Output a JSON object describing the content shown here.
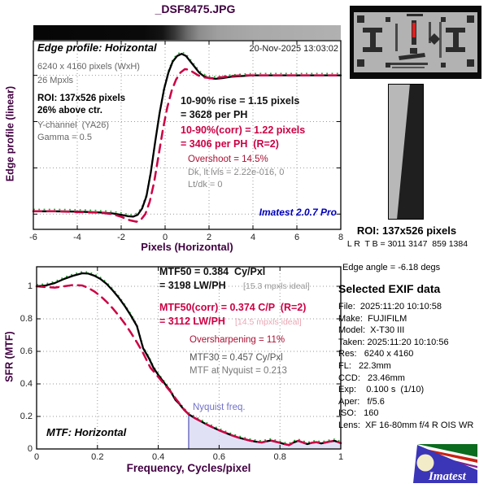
{
  "window": {
    "title": "_DSF8475.JPG"
  },
  "colors": {
    "axis_purple": "#400040",
    "crimson": "#cc0044",
    "dark_crimson": "#aa1133",
    "watermark_blue": "#0000bb",
    "nyquist_blue": "#7070c8",
    "nyquist_fill": "#dcdcf4",
    "ghost_green": "#22a833",
    "gray_text": "#777777",
    "pink_ideal": "#eba6b4"
  },
  "top_panel": {
    "header_label": "Edge profile: Horizontal",
    "timestamp": "20-Nov-2025 13:03:02",
    "info_lines": [
      "6240 x 4160 pixels (WxH)",
      "26 Mpxls"
    ],
    "roi_lines": [
      "ROI: 137x526 pixels",
      "26% above ctr."
    ],
    "channel_lines": [
      "Y-channel  (YA26)",
      "Gamma = 0.5"
    ],
    "rise_black_1": "10-90% rise = 1.15 pixels",
    "rise_black_2": "= 3628 per PH",
    "rise_corr_1": "10-90%(corr) = 1.22 pixels",
    "rise_corr_2": "= 3406 per PH  (R=2)",
    "overshoot": "Overshoot = 14.5%",
    "dk_lt": "Dk, lt lvls = 2.22e-016, 0",
    "lt_dk": "Lt/dk = 0",
    "watermark": "Imatest 2.0.7 Pro",
    "xlabel": "Pixels (Horizontal)",
    "ylabel": "Edge profile (linear)"
  },
  "bottom_panel": {
    "mtf50_1": "MTF50 = 0.384  Cy/Pxl",
    "mtf50_2": "= 3198 LW/PH",
    "mtf50_ideal": "[15.3 mpxls ideal]",
    "mtf50corr_1": "MTF50(corr) = 0.374 C/P  (R=2)",
    "mtf50corr_2": "= 3112 LW/PH",
    "mtf50corr_ideal": "[14.5 mpxls ideal]",
    "oversharpening": "Oversharpening = 11%",
    "mtf30": "MTF30 = 0.457 Cy/Pxl",
    "mtf_nyquist": "MTF at Nyquist = 0.213",
    "nyquist_label": "Nyquist freq.",
    "plot_label": "MTF: Horizontal",
    "xlabel": "Frequency, Cycles/pixel",
    "ylabel": "SFR (MTF)"
  },
  "side_panel": {
    "roi_title": "ROI: 137x526 pixels",
    "roi_coords": "L R  T B = 3011 3147  859 1384",
    "edge_angle": "Edge angle = -6.18 degs",
    "exif_title": "Selected EXIF data",
    "exif_lines": [
      "File:  2025:11:20 10:10:58",
      "Make:  FUJIFILM",
      "Model:  X-T30 III",
      "Taken: 2025:11:20 10:10:56",
      "Res:   6240 x 4160",
      "FL:   22.3mm",
      "CCD:   23.46mm",
      "Exp:    0.100 s  (1/10)",
      "Aper:   f/5.6",
      "ISO:   160",
      "Lens:  XF 16-80mm f/4 R OIS WR"
    ],
    "logo_text": "Imatest"
  },
  "chart_data": [
    {
      "type": "line",
      "title": "Edge profile: Horizontal",
      "xlabel": "Pixels (Horizontal)",
      "ylabel": "Edge profile (linear)",
      "xlim": [
        -6,
        8
      ],
      "ylim": [
        -0.11,
        1.25
      ],
      "xticks": [
        -6,
        -4,
        -2,
        0,
        2,
        4,
        6,
        8
      ],
      "ygrid": [
        0,
        0.333,
        0.667,
        1.0
      ],
      "grid": "dotted",
      "legend_position": "none",
      "series": [
        {
          "name": "edge profile (uncorrected)",
          "color": "#000000",
          "style": "solid",
          "points": [
            [
              -6,
              0.02
            ],
            [
              -5,
              0.02
            ],
            [
              -4,
              0.018
            ],
            [
              -3,
              0.012
            ],
            [
              -2.4,
              0.005
            ],
            [
              -2,
              -0.005
            ],
            [
              -1.7,
              -0.015
            ],
            [
              -1.45,
              -0.018
            ],
            [
              -1.25,
              -0.005
            ],
            [
              -1.05,
              0.04
            ],
            [
              -0.85,
              0.13
            ],
            [
              -0.65,
              0.3
            ],
            [
              -0.45,
              0.52
            ],
            [
              -0.25,
              0.73
            ],
            [
              -0.05,
              0.9
            ],
            [
              0.15,
              1.02
            ],
            [
              0.35,
              1.1
            ],
            [
              0.55,
              1.14
            ],
            [
              0.75,
              1.155
            ],
            [
              0.95,
              1.14
            ],
            [
              1.15,
              1.1
            ],
            [
              1.35,
              1.06
            ],
            [
              1.55,
              1.02
            ],
            [
              1.75,
              0.995
            ],
            [
              2,
              0.98
            ],
            [
              2.3,
              0.975
            ],
            [
              2.6,
              0.98
            ],
            [
              3,
              0.99
            ],
            [
              3.5,
              0.995
            ],
            [
              4,
              1
            ],
            [
              5,
              1
            ],
            [
              6,
              1
            ],
            [
              7,
              1
            ],
            [
              8,
              1
            ]
          ]
        },
        {
          "name": "edge profile (corrected, R=2)",
          "color": "#cc0044",
          "style": "dashed",
          "points": [
            [
              -6,
              0.02
            ],
            [
              -5,
              0.02
            ],
            [
              -4,
              0.015
            ],
            [
              -3,
              0.01
            ],
            [
              -2.4,
              0
            ],
            [
              -2,
              -0.02
            ],
            [
              -1.6,
              -0.045
            ],
            [
              -1.3,
              -0.055
            ],
            [
              -1.1,
              -0.04
            ],
            [
              -0.9,
              0
            ],
            [
              -0.7,
              0.09
            ],
            [
              -0.5,
              0.23
            ],
            [
              -0.3,
              0.42
            ],
            [
              -0.1,
              0.61
            ],
            [
              0.1,
              0.77
            ],
            [
              0.3,
              0.89
            ],
            [
              0.5,
              0.97
            ],
            [
              0.7,
              1.02
            ],
            [
              0.9,
              1.045
            ],
            [
              1.1,
              1.04
            ],
            [
              1.3,
              1.02
            ],
            [
              1.5,
              1
            ],
            [
              1.8,
              0.985
            ],
            [
              2.1,
              0.98
            ],
            [
              2.5,
              0.985
            ],
            [
              3,
              0.995
            ],
            [
              3.5,
              1
            ],
            [
              4,
              1
            ],
            [
              5,
              1
            ],
            [
              6,
              1
            ],
            [
              7,
              1
            ],
            [
              8,
              1
            ]
          ]
        }
      ],
      "key_values": {
        "rise_10_90_pixels": 1.15,
        "rise_per_PH": 3628,
        "rise_corr_pixels": 1.22,
        "rise_corr_per_PH": 3406,
        "overshoot_pct": 14.5
      }
    },
    {
      "type": "line",
      "title": "MTF: Horizontal",
      "xlabel": "Frequency, Cycles/pixel",
      "ylabel": "SFR (MTF)",
      "xlim": [
        0,
        1
      ],
      "ylim": [
        0,
        1.12
      ],
      "xticks": [
        0,
        0.2,
        0.4,
        0.6,
        0.8,
        1
      ],
      "yticks": [
        0,
        0.2,
        0.4,
        0.6,
        0.8,
        1
      ],
      "grid": "dotted",
      "legend_position": "none",
      "nyquist": {
        "x": 0.5,
        "y": 0.213,
        "label": "Nyquist freq."
      },
      "series": [
        {
          "name": "MTF (uncorrected)",
          "color": "#000000",
          "style": "solid",
          "points": [
            [
              0,
              1
            ],
            [
              0.03,
              1.005
            ],
            [
              0.06,
              1.02
            ],
            [
              0.09,
              1.045
            ],
            [
              0.12,
              1.065
            ],
            [
              0.15,
              1.08
            ],
            [
              0.17,
              1.078
            ],
            [
              0.19,
              1.065
            ],
            [
              0.21,
              1.045
            ],
            [
              0.23,
              1.015
            ],
            [
              0.25,
              0.975
            ],
            [
              0.27,
              0.93
            ],
            [
              0.29,
              0.878
            ],
            [
              0.31,
              0.82
            ],
            [
              0.33,
              0.755
            ],
            [
              0.35,
              0.62
            ],
            [
              0.37,
              0.555
            ],
            [
              0.384,
              0.5
            ],
            [
              0.4,
              0.455
            ],
            [
              0.42,
              0.405
            ],
            [
              0.44,
              0.355
            ],
            [
              0.457,
              0.3
            ],
            [
              0.47,
              0.275
            ],
            [
              0.485,
              0.24
            ],
            [
              0.5,
              0.213
            ],
            [
              0.52,
              0.19
            ],
            [
              0.54,
              0.17
            ],
            [
              0.56,
              0.15
            ],
            [
              0.58,
              0.132
            ],
            [
              0.6,
              0.115
            ],
            [
              0.62,
              0.1
            ],
            [
              0.64,
              0.085
            ],
            [
              0.66,
              0.072
            ],
            [
              0.68,
              0.062
            ],
            [
              0.7,
              0.052
            ],
            [
              0.72,
              0.045
            ],
            [
              0.74,
              0.04
            ],
            [
              0.755,
              0.047
            ],
            [
              0.77,
              0.052
            ],
            [
              0.785,
              0.045
            ],
            [
              0.8,
              0.038
            ],
            [
              0.815,
              0.03
            ],
            [
              0.83,
              0.024
            ],
            [
              0.845,
              0.04
            ],
            [
              0.86,
              0.05
            ],
            [
              0.875,
              0.04
            ],
            [
              0.89,
              0.03
            ],
            [
              0.905,
              0.038
            ],
            [
              0.92,
              0.042
            ],
            [
              0.935,
              0.034
            ],
            [
              0.95,
              0.04
            ],
            [
              0.965,
              0.046
            ],
            [
              0.98,
              0.05
            ],
            [
              1,
              0.036
            ]
          ]
        },
        {
          "name": "MTF (corrected, R=2)",
          "color": "#cc0044",
          "style": "dashed",
          "points": [
            [
              0,
              1
            ],
            [
              0.03,
              0.995
            ],
            [
              0.06,
              0.992
            ],
            [
              0.09,
              1
            ],
            [
              0.12,
              1.008
            ],
            [
              0.15,
              1.005
            ],
            [
              0.17,
              0.99
            ],
            [
              0.19,
              0.968
            ],
            [
              0.21,
              0.94
            ],
            [
              0.23,
              0.905
            ],
            [
              0.25,
              0.865
            ],
            [
              0.27,
              0.82
            ],
            [
              0.29,
              0.77
            ],
            [
              0.31,
              0.715
            ],
            [
              0.33,
              0.655
            ],
            [
              0.35,
              0.59
            ],
            [
              0.374,
              0.5
            ],
            [
              0.39,
              0.465
            ],
            [
              0.41,
              0.42
            ],
            [
              0.43,
              0.375
            ],
            [
              0.45,
              0.33
            ],
            [
              0.457,
              0.31
            ],
            [
              0.47,
              0.278
            ],
            [
              0.485,
              0.242
            ],
            [
              0.5,
              0.213
            ],
            [
              0.52,
              0.19
            ],
            [
              0.54,
              0.17
            ],
            [
              0.56,
              0.15
            ],
            [
              0.58,
              0.132
            ],
            [
              0.6,
              0.115
            ],
            [
              0.62,
              0.1
            ],
            [
              0.64,
              0.085
            ],
            [
              0.66,
              0.072
            ],
            [
              0.68,
              0.062
            ],
            [
              0.7,
              0.052
            ],
            [
              0.72,
              0.045
            ],
            [
              0.74,
              0.04
            ],
            [
              0.755,
              0.047
            ],
            [
              0.77,
              0.052
            ],
            [
              0.785,
              0.045
            ],
            [
              0.8,
              0.038
            ],
            [
              0.815,
              0.03
            ],
            [
              0.83,
              0.024
            ],
            [
              0.845,
              0.04
            ],
            [
              0.86,
              0.05
            ],
            [
              0.875,
              0.04
            ],
            [
              0.89,
              0.03
            ],
            [
              0.905,
              0.038
            ],
            [
              0.92,
              0.042
            ],
            [
              0.935,
              0.034
            ],
            [
              0.95,
              0.04
            ],
            [
              0.965,
              0.046
            ],
            [
              0.98,
              0.05
            ],
            [
              1,
              0.036
            ]
          ]
        }
      ],
      "key_values": {
        "MTF50_CyPxl": 0.384,
        "MTF50_LWPH": 3198,
        "MTF50corr_CP": 0.374,
        "MTF50corr_LWPH": 3112,
        "oversharpening_pct": 11,
        "MTF30_CyPxl": 0.457,
        "MTF_at_nyquist": 0.213
      }
    }
  ]
}
